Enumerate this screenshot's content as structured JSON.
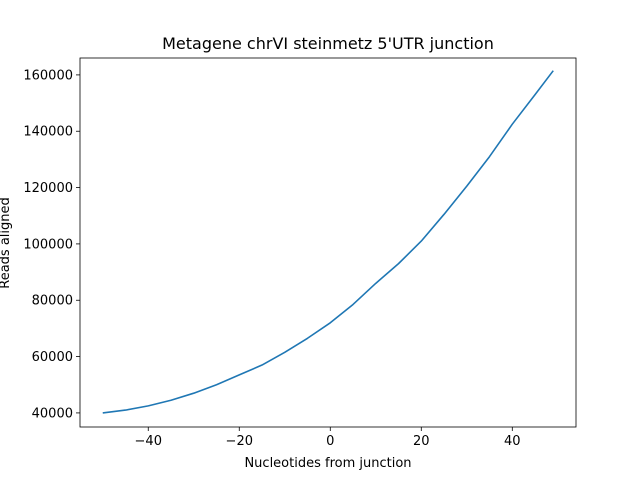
{
  "chart_data": {
    "type": "line",
    "title": "Metagene chrVI steinmetz 5'UTR junction",
    "xlabel": "Nucleotides from junction",
    "ylabel": "Reads aligned",
    "xlim": [
      -55,
      54
    ],
    "ylim": [
      35000,
      166000
    ],
    "xticks": [
      -40,
      -20,
      0,
      20,
      40
    ],
    "yticks": [
      40000,
      60000,
      80000,
      100000,
      120000,
      140000,
      160000
    ],
    "xtick_labels": [
      "−40",
      "−20",
      "0",
      "20",
      "40"
    ],
    "ytick_labels": [
      "40000",
      "60000",
      "80000",
      "100000",
      "120000",
      "140000",
      "160000"
    ],
    "grid": false,
    "legend": "none",
    "series": [
      {
        "color": "#1f77b4",
        "x": [
          -50,
          -45,
          -40,
          -35,
          -30,
          -25,
          -20,
          -15,
          -10,
          -5,
          0,
          5,
          10,
          15,
          20,
          25,
          30,
          35,
          40,
          45,
          49
        ],
        "values": [
          40000,
          41000,
          42500,
          44500,
          47000,
          50000,
          53500,
          57000,
          61500,
          66500,
          72000,
          78500,
          86000,
          93000,
          101000,
          110500,
          120500,
          131000,
          142500,
          153000,
          161500
        ]
      }
    ]
  }
}
